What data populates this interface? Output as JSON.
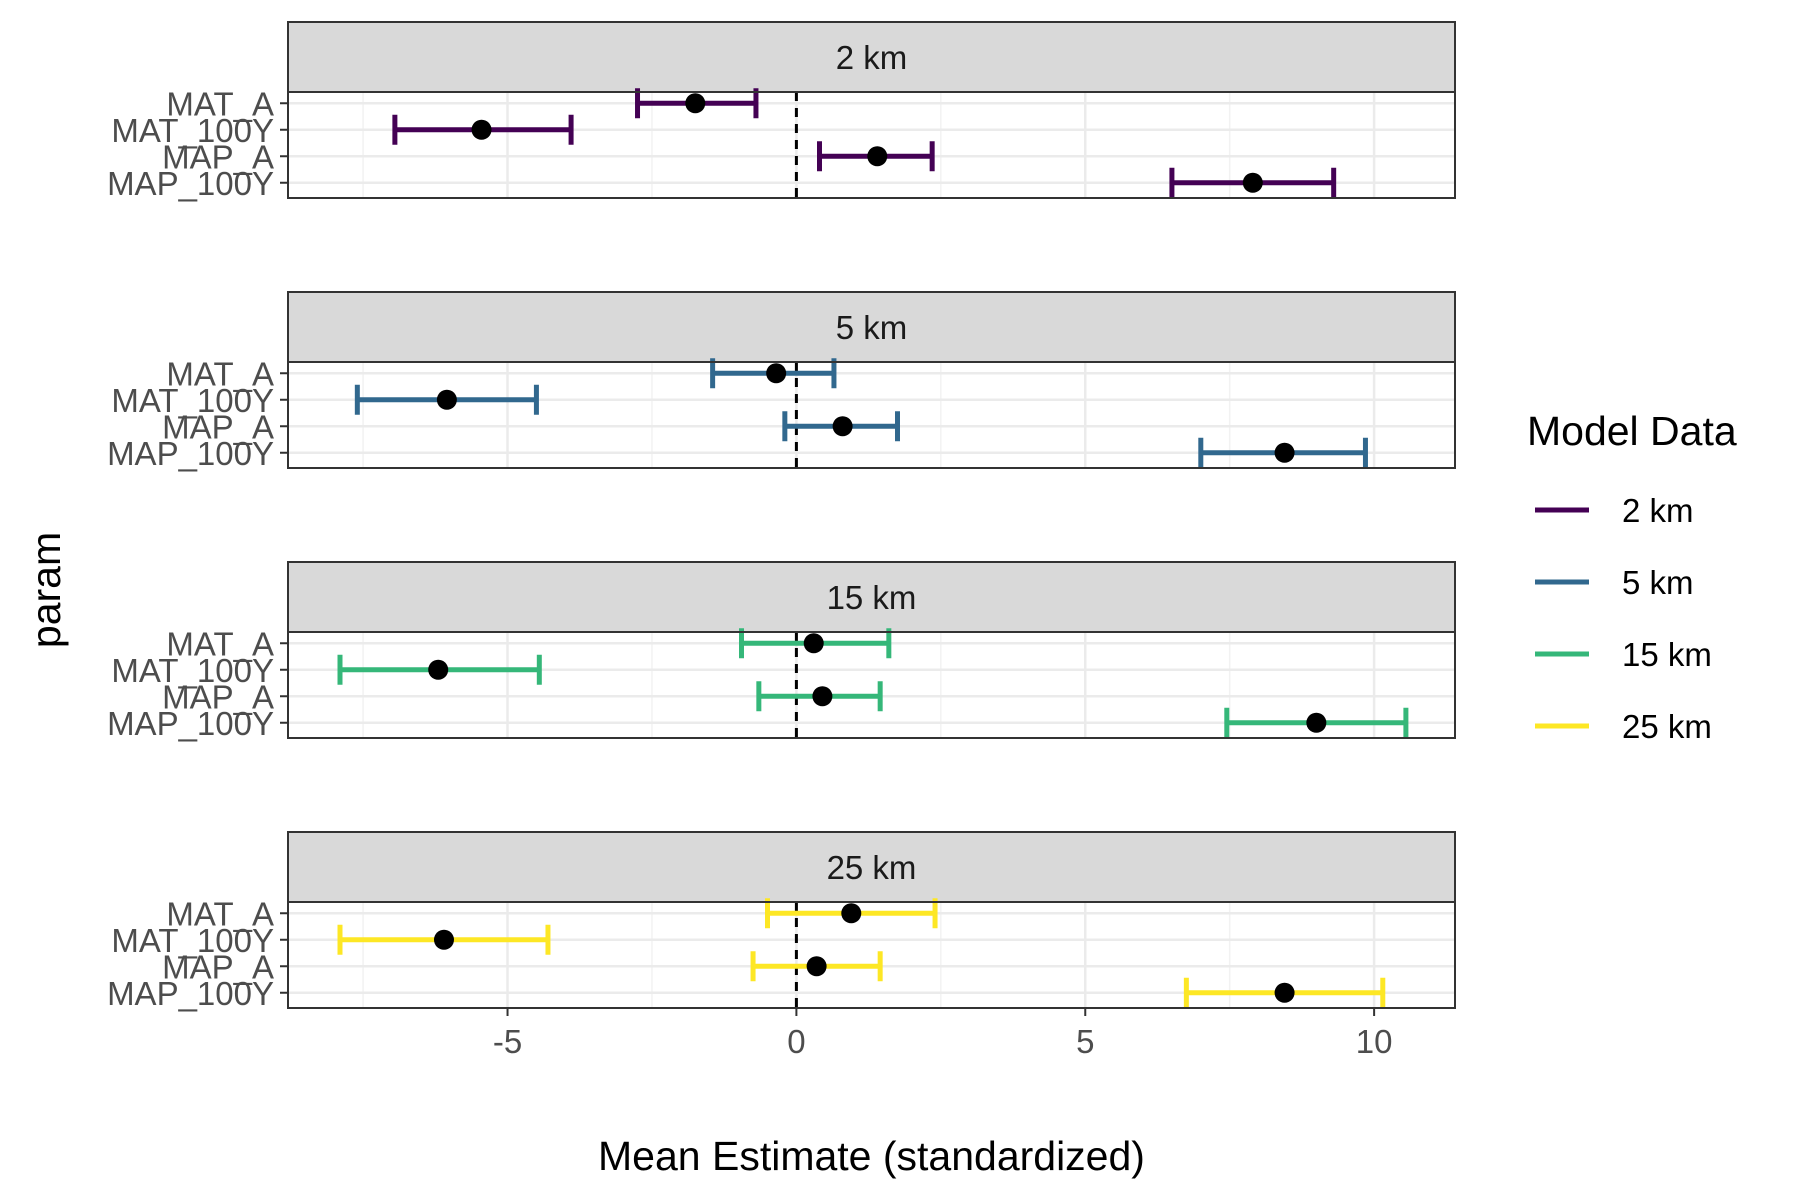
{
  "chart_data": {
    "type": "errorbar",
    "xlabel": "Mean Estimate (standardized)",
    "ylabel": "param",
    "xlim": [
      -8.8,
      11.4
    ],
    "xticks": [
      -5,
      0,
      5,
      10
    ],
    "xtick_labels": [
      "-5",
      "0",
      "5",
      "10"
    ],
    "reference_line_x": 0,
    "categories": [
      "MAT_A",
      "MAT_100Y",
      "MAP_A",
      "MAP_100Y"
    ],
    "legend": {
      "title": "Model Data",
      "placement": "right"
    },
    "panels": [
      {
        "label": "2 km",
        "color": "#440154",
        "points": [
          {
            "param": "MAT_A",
            "mean": -1.75,
            "lower": -2.75,
            "upper": -0.7
          },
          {
            "param": "MAT_100Y",
            "mean": -5.45,
            "lower": -6.95,
            "upper": -3.9
          },
          {
            "param": "MAP_A",
            "mean": 1.4,
            "lower": 0.4,
            "upper": 2.35
          },
          {
            "param": "MAP_100Y",
            "mean": 7.9,
            "lower": 6.5,
            "upper": 9.3
          }
        ]
      },
      {
        "label": "5 km",
        "color": "#31688E",
        "points": [
          {
            "param": "MAT_A",
            "mean": -0.35,
            "lower": -1.45,
            "upper": 0.65
          },
          {
            "param": "MAT_100Y",
            "mean": -6.05,
            "lower": -7.6,
            "upper": -4.5
          },
          {
            "param": "MAP_A",
            "mean": 0.8,
            "lower": -0.2,
            "upper": 1.75
          },
          {
            "param": "MAP_100Y",
            "mean": 8.45,
            "lower": 7.0,
            "upper": 9.85
          }
        ]
      },
      {
        "label": "15 km",
        "color": "#35B779",
        "points": [
          {
            "param": "MAT_A",
            "mean": 0.3,
            "lower": -0.95,
            "upper": 1.6
          },
          {
            "param": "MAT_100Y",
            "mean": -6.2,
            "lower": -7.9,
            "upper": -4.45
          },
          {
            "param": "MAP_A",
            "mean": 0.45,
            "lower": -0.65,
            "upper": 1.45
          },
          {
            "param": "MAP_100Y",
            "mean": 9.0,
            "lower": 7.45,
            "upper": 10.55
          }
        ]
      },
      {
        "label": "25 km",
        "color": "#FDE725",
        "points": [
          {
            "param": "MAT_A",
            "mean": 0.95,
            "lower": -0.5,
            "upper": 2.4
          },
          {
            "param": "MAT_100Y",
            "mean": -6.1,
            "lower": -7.9,
            "upper": -4.3
          },
          {
            "param": "MAP_A",
            "mean": 0.35,
            "lower": -0.75,
            "upper": 1.45
          },
          {
            "param": "MAP_100Y",
            "mean": 8.45,
            "lower": 6.75,
            "upper": 10.15
          }
        ]
      }
    ]
  }
}
